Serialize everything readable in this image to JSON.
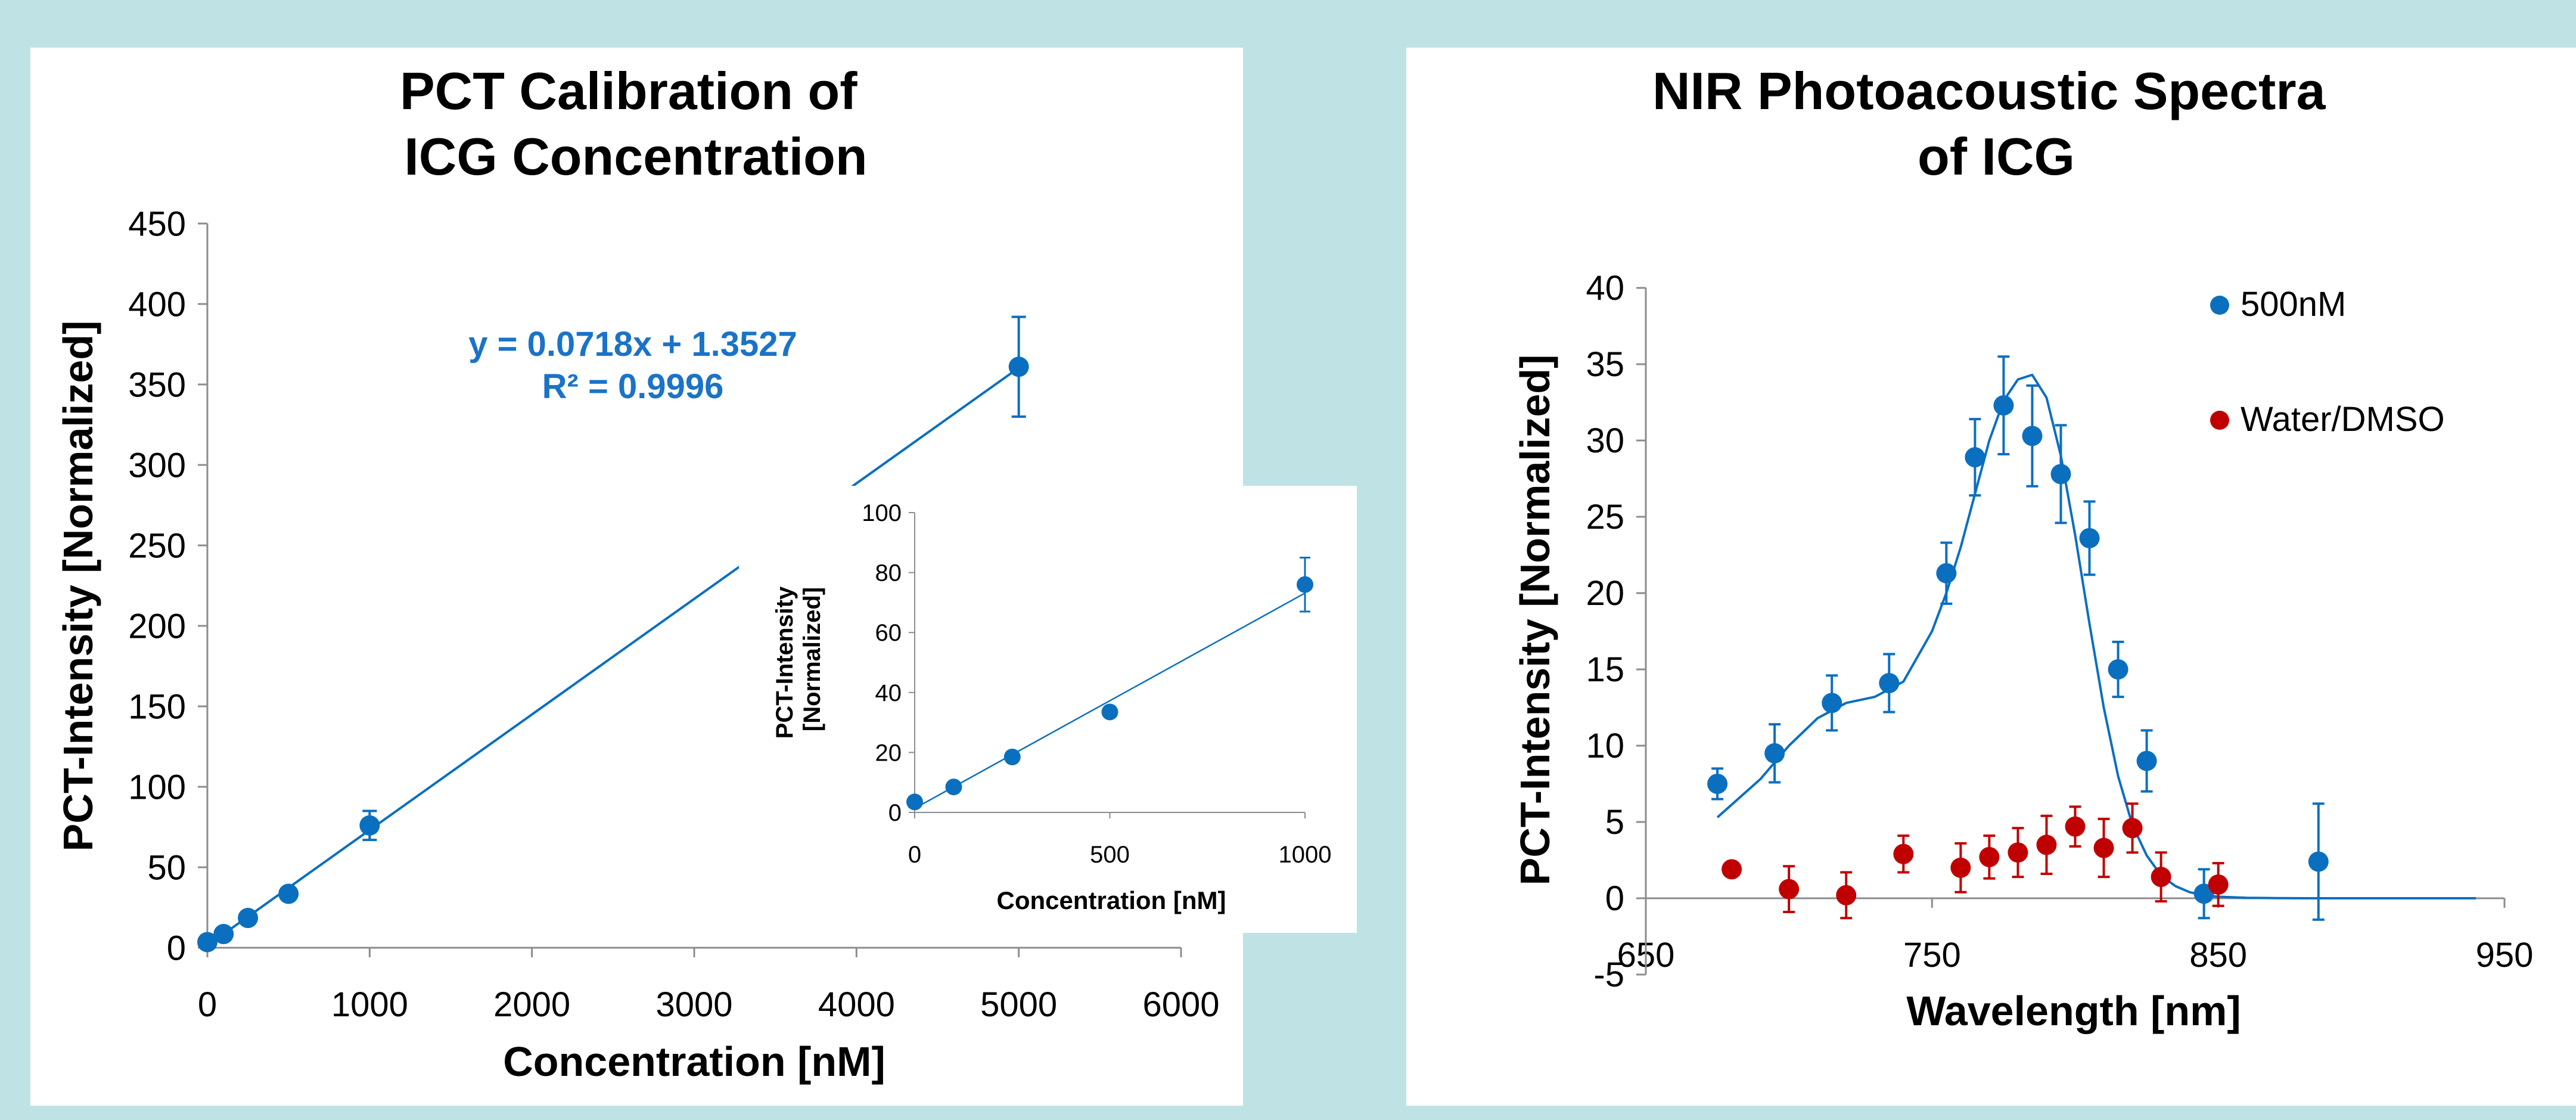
{
  "colors": {
    "background": "#bfe3e5",
    "panel": "#ffffff",
    "series_blue": "#0b6fc0",
    "series_red": "#c00000",
    "axis": "#8c8c8c",
    "text": "#000000",
    "equation": "#1a73c8"
  },
  "chart_data": [
    {
      "type": "scatter",
      "title": "PCT Calibration of\nICG Concentration",
      "xlabel": "Concentration [nM]",
      "ylabel": "PCT-Intensity [Normalized]",
      "xlim": [
        0,
        6000
      ],
      "ylim": [
        0,
        450
      ],
      "xticks": [
        0,
        1000,
        2000,
        3000,
        4000,
        5000,
        6000
      ],
      "yticks": [
        0,
        50,
        100,
        150,
        200,
        250,
        300,
        350,
        400,
        450
      ],
      "grid": false,
      "series": [
        {
          "x": [
            0,
            100,
            250,
            500,
            1000,
            5000
          ],
          "y": [
            3.5,
            8.5,
            18.5,
            33.5,
            76,
            361
          ],
          "error": [
            1,
            1.5,
            2,
            2,
            9,
            31
          ]
        }
      ],
      "trendline": {
        "slope": 0.0718,
        "intercept": 1.3527
      },
      "annotations": [
        "y = 0.0718x + 1.3527",
        "R² = 0.9996"
      ],
      "inset": {
        "type": "scatter",
        "xlabel": "Concentration [nM]",
        "ylabel": "PCT-Intensity\n[Normalized]",
        "xlim": [
          0,
          1000
        ],
        "ylim": [
          0,
          100
        ],
        "xticks": [
          0,
          500,
          1000
        ],
        "yticks": [
          0,
          20,
          40,
          60,
          80,
          100
        ],
        "series": [
          {
            "x": [
              0,
              100,
              250,
              500,
              1000
            ],
            "y": [
              3.5,
              8.5,
              18.5,
              33.5,
              76
            ],
            "error": [
              1,
              1,
              1,
              1.5,
              9
            ]
          }
        ],
        "trendline": {
          "slope": 0.0718,
          "intercept": 1.3527
        }
      }
    },
    {
      "type": "scatter",
      "title": "NIR Photoacoustic Spectra\nof ICG",
      "xlabel": "Wavelength [nm]",
      "ylabel": "PCT-Intensity [Normalized]",
      "xlim": [
        650,
        950
      ],
      "ylim": [
        -5,
        40
      ],
      "xticks": [
        650,
        750,
        850,
        950
      ],
      "yticks": [
        -5,
        0,
        5,
        10,
        15,
        20,
        25,
        30,
        35,
        40
      ],
      "grid": false,
      "legend_position": "top-right",
      "series": [
        {
          "name": "500nM",
          "x": [
            675,
            695,
            715,
            735,
            755,
            765,
            775,
            785,
            795,
            805,
            815,
            825,
            845,
            885
          ],
          "y": [
            7.5,
            9.5,
            12.8,
            14.1,
            21.3,
            28.9,
            32.3,
            30.3,
            27.8,
            23.6,
            15.0,
            9.0,
            0.3,
            2.4
          ],
          "error": [
            1,
            1.9,
            1.8,
            1.9,
            2,
            2.5,
            3.2,
            3.3,
            3.2,
            2.4,
            1.8,
            2,
            1.6,
            3.8
          ]
        },
        {
          "name": "Water/DMSO",
          "x": [
            680,
            700,
            720,
            740,
            760,
            770,
            780,
            790,
            800,
            810,
            820,
            830,
            850
          ],
          "y": [
            1.9,
            0.6,
            0.2,
            2.9,
            2.0,
            2.7,
            3.0,
            3.5,
            4.7,
            3.3,
            4.6,
            1.4,
            0.9
          ],
          "error": [
            0,
            1.5,
            1.5,
            1.2,
            1.6,
            1.4,
            1.6,
            1.9,
            1.3,
            1.9,
            1.6,
            1.6,
            1.4
          ]
        }
      ],
      "fit_curve": {
        "x": [
          675,
          690,
          700,
          710,
          720,
          730,
          740,
          750,
          755,
          760,
          765,
          770,
          775,
          780,
          785,
          790,
          795,
          800,
          805,
          810,
          815,
          820,
          825,
          830,
          835,
          840,
          845,
          850,
          860,
          870,
          880,
          900,
          920,
          940
        ],
        "y": [
          5.3,
          7.8,
          10.0,
          11.8,
          12.8,
          13.2,
          14.2,
          17.5,
          20.0,
          23.0,
          26.5,
          30.0,
          32.6,
          34.0,
          34.3,
          32.8,
          29.0,
          23.8,
          18.0,
          12.5,
          8.0,
          4.8,
          2.8,
          1.5,
          0.8,
          0.4,
          0.2,
          0.1,
          0.03,
          0.01,
          0,
          0,
          0,
          0
        ]
      }
    }
  ]
}
